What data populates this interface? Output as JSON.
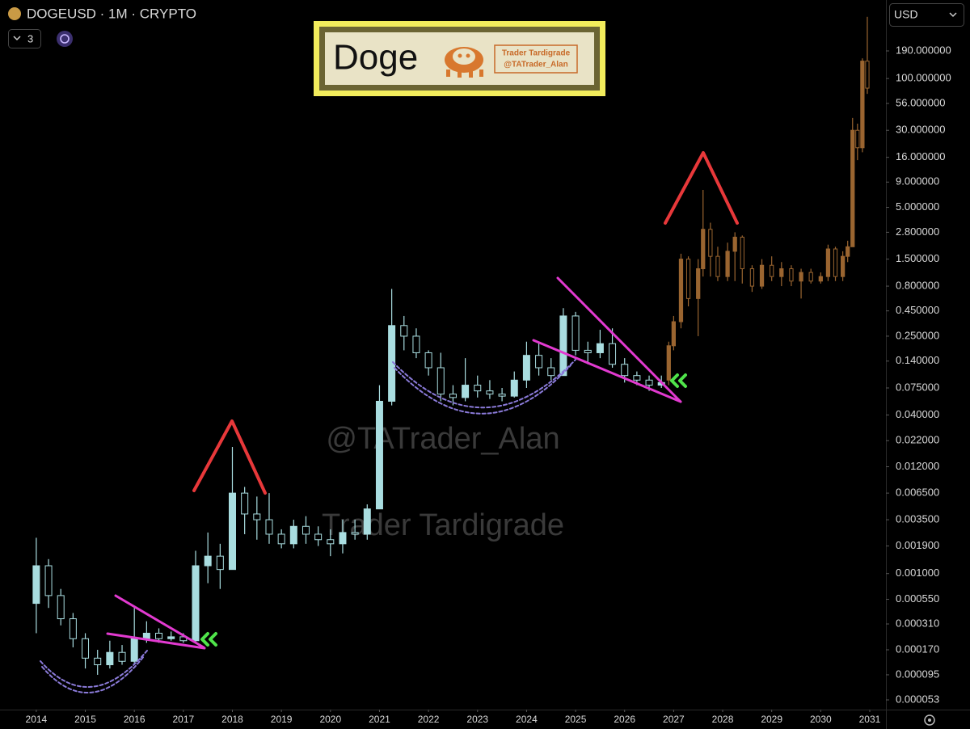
{
  "header": {
    "symbol": "DOGEUSD · 1M · CRYPTO",
    "indicator_count": 3,
    "currency": "USD"
  },
  "banner": {
    "title": "Doge",
    "line1": "Trader Tardigrade",
    "line2": "@TATrader_Alan"
  },
  "watermarks": [
    "@TATrader_Alan",
    "Trader Tardigrade"
  ],
  "chart_data": {
    "type": "candlestick",
    "log_scale": true,
    "grid": false,
    "xlim": [
      2013.26,
      2031.33
    ],
    "xticks": [
      2014,
      2015,
      2016,
      2017,
      2018,
      2019,
      2020,
      2021,
      2022,
      2023,
      2024,
      2025,
      2026,
      2027,
      2028,
      2029,
      2030,
      2031
    ],
    "ylim": [
      4.23e-05,
      621
    ],
    "yticks": [
      {
        "value": 190,
        "label": "190.000000"
      },
      {
        "value": 100,
        "label": "100.000000"
      },
      {
        "value": 56,
        "label": "56.000000"
      },
      {
        "value": 30,
        "label": "30.000000"
      },
      {
        "value": 16,
        "label": "16.000000"
      },
      {
        "value": 9,
        "label": "9.000000"
      },
      {
        "value": 5,
        "label": "5.000000"
      },
      {
        "value": 2.8,
        "label": "2.800000"
      },
      {
        "value": 1.5,
        "label": "1.500000"
      },
      {
        "value": 0.8,
        "label": "0.800000"
      },
      {
        "value": 0.45,
        "label": "0.450000"
      },
      {
        "value": 0.25,
        "label": "0.250000"
      },
      {
        "value": 0.14,
        "label": "0.140000"
      },
      {
        "value": 0.075,
        "label": "0.075000"
      },
      {
        "value": 0.04,
        "label": "0.040000"
      },
      {
        "value": 0.022,
        "label": "0.022000"
      },
      {
        "value": 0.012,
        "label": "0.012000"
      },
      {
        "value": 0.0065,
        "label": "0.006500"
      },
      {
        "value": 0.0035,
        "label": "0.003500"
      },
      {
        "value": 0.0019,
        "label": "0.001900"
      },
      {
        "value": 0.001,
        "label": "0.001000"
      },
      {
        "value": 0.00055,
        "label": "0.000550"
      },
      {
        "value": 0.00031,
        "label": "0.000310"
      },
      {
        "value": 0.00017,
        "label": "0.000170"
      },
      {
        "value": 9.5e-05,
        "label": "0.000095"
      },
      {
        "value": 5.3e-05,
        "label": "0.000053"
      }
    ],
    "series": [
      {
        "color": "#a9dde0",
        "x": [
          2014,
          2014.25,
          2014.5,
          2014.75,
          2015,
          2015.25,
          2015.5,
          2015.75,
          2016,
          2016.25,
          2016.5,
          2016.75,
          2017,
          2017.25,
          2017.5,
          2017.75,
          2018,
          2018.25,
          2018.5,
          2018.75,
          2019,
          2019.25,
          2019.5,
          2019.75,
          2020,
          2020.25,
          2020.5,
          2020.75,
          2021,
          2021.25,
          2021.5,
          2021.75,
          2022,
          2022.25,
          2022.5,
          2022.75,
          2023,
          2023.25,
          2023.5,
          2023.75,
          2024,
          2024.25,
          2024.5,
          2024.75,
          2025,
          2025.25,
          2025.5,
          2025.75,
          2026,
          2026.25,
          2026.5,
          2026.75
        ],
        "open": [
          0.0005,
          0.0012,
          0.0006,
          0.00035,
          0.00022,
          0.00014,
          0.00012,
          0.00016,
          0.00013,
          0.00022,
          0.00025,
          0.00022,
          0.00023,
          0.00021,
          0.0012,
          0.0015,
          0.0011,
          0.0065,
          0.004,
          0.0035,
          0.0025,
          0.002,
          0.003,
          0.0025,
          0.0022,
          0.002,
          0.0026,
          0.0025,
          0.0045,
          0.055,
          0.32,
          0.25,
          0.17,
          0.12,
          0.065,
          0.06,
          0.08,
          0.07,
          0.065,
          0.062,
          0.09,
          0.16,
          0.12,
          0.1,
          0.4,
          0.18,
          0.17,
          0.21,
          0.13,
          0.1,
          0.09,
          0.08
        ],
        "high": [
          0.0023,
          0.0014,
          0.0007,
          0.0004,
          0.00025,
          0.00017,
          0.00021,
          0.00019,
          0.00045,
          0.00033,
          0.00028,
          0.00026,
          0.00025,
          0.0017,
          0.0026,
          0.002,
          0.019,
          0.0075,
          0.006,
          0.0065,
          0.0028,
          0.0035,
          0.0038,
          0.003,
          0.0028,
          0.0035,
          0.0035,
          0.005,
          0.08,
          0.75,
          0.4,
          0.3,
          0.18,
          0.17,
          0.08,
          0.15,
          0.1,
          0.09,
          0.075,
          0.11,
          0.22,
          0.22,
          0.15,
          0.48,
          0.44,
          0.22,
          0.29,
          0.3,
          0.15,
          0.11,
          0.1,
          0.1
        ],
        "low": [
          0.00025,
          0.00045,
          0.0003,
          0.00018,
          0.00011,
          9.5e-05,
          0.00011,
          0.00012,
          0.00012,
          0.0002,
          0.0002,
          0.00021,
          0.0002,
          0.0002,
          0.0008,
          0.0007,
          0.0011,
          0.0025,
          0.0022,
          0.002,
          0.0018,
          0.0018,
          0.002,
          0.0019,
          0.0015,
          0.0016,
          0.0022,
          0.0022,
          0.0045,
          0.05,
          0.18,
          0.15,
          0.1,
          0.055,
          0.05,
          0.055,
          0.06,
          0.058,
          0.055,
          0.06,
          0.075,
          0.1,
          0.09,
          0.1,
          0.16,
          0.13,
          0.15,
          0.12,
          0.085,
          0.08,
          0.07,
          0.075
        ],
        "close": [
          0.0012,
          0.0006,
          0.00035,
          0.00022,
          0.00014,
          0.00012,
          0.00016,
          0.00013,
          0.00022,
          0.00025,
          0.00022,
          0.00023,
          0.00021,
          0.0012,
          0.0015,
          0.0011,
          0.0065,
          0.004,
          0.0035,
          0.0025,
          0.002,
          0.003,
          0.0025,
          0.0022,
          0.002,
          0.0026,
          0.0025,
          0.0045,
          0.055,
          0.32,
          0.25,
          0.17,
          0.12,
          0.065,
          0.06,
          0.08,
          0.07,
          0.065,
          0.062,
          0.09,
          0.16,
          0.12,
          0.1,
          0.4,
          0.18,
          0.17,
          0.21,
          0.13,
          0.1,
          0.09,
          0.08,
          0.085
        ]
      },
      {
        "color": "#9a6530",
        "x": [
          2026.9,
          2027,
          2027.15,
          2027.3,
          2027.5,
          2027.6,
          2027.75,
          2027.9,
          2028.1,
          2028.25,
          2028.4,
          2028.6,
          2028.8,
          2029,
          2029.2,
          2029.4,
          2029.6,
          2029.8,
          2030,
          2030.15,
          2030.3,
          2030.45,
          2030.55,
          2030.65,
          2030.75,
          2030.85,
          2030.95
        ],
        "open": [
          0.09,
          0.2,
          0.35,
          1.5,
          0.6,
          1.2,
          3,
          1.6,
          1,
          1.8,
          2.5,
          1.2,
          0.8,
          1.3,
          1,
          1.2,
          0.9,
          1.1,
          0.9,
          1,
          1.9,
          1,
          1.6,
          2,
          30,
          20,
          150
        ],
        "high": [
          0.22,
          0.4,
          1.7,
          1.6,
          1.5,
          7.5,
          3.5,
          2,
          2.2,
          2.8,
          2.6,
          1.3,
          1.5,
          1.6,
          1.4,
          1.3,
          1.2,
          1.2,
          1.1,
          2.1,
          2,
          1.8,
          2.3,
          40,
          35,
          160,
          420
        ],
        "low": [
          0.08,
          0.18,
          0.3,
          0.5,
          0.25,
          1,
          1,
          0.9,
          0.9,
          0.9,
          0.85,
          0.7,
          0.75,
          0.9,
          0.8,
          0.8,
          0.6,
          0.85,
          0.85,
          0.9,
          0.9,
          0.9,
          1.4,
          2,
          15,
          18,
          70
        ],
        "close": [
          0.2,
          0.35,
          1.5,
          0.6,
          1.2,
          3,
          1.6,
          1,
          1.8,
          2.5,
          1.2,
          0.8,
          1.3,
          1,
          1.2,
          0.9,
          1.1,
          0.9,
          1,
          1.9,
          1,
          1.6,
          2,
          30,
          20,
          150,
          80
        ]
      }
    ]
  }
}
